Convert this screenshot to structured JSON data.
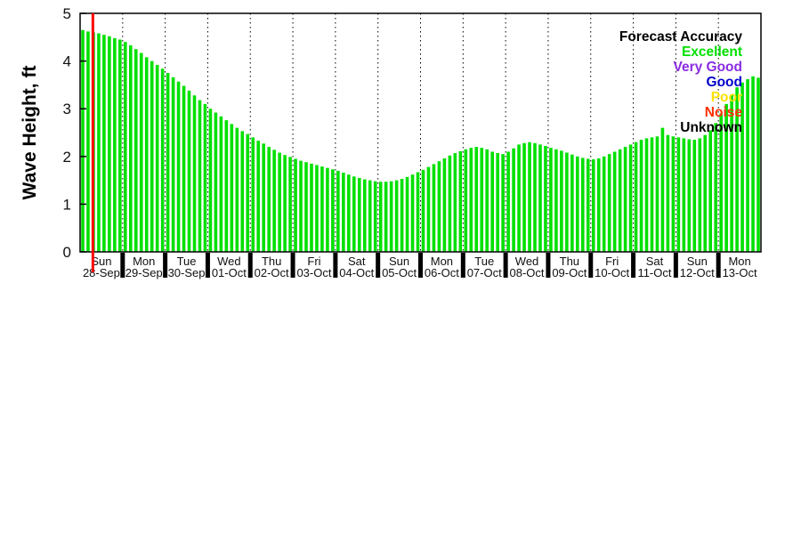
{
  "page": {
    "background": "#ffffff"
  },
  "chart_data": {
    "type": "bar",
    "title": "",
    "ylabel": "Wave Height, ft",
    "ylim": [
      0,
      5
    ],
    "yticks": [
      0,
      1,
      2,
      3,
      4,
      5
    ],
    "grid": {
      "vertical_dotted": true,
      "horizontal": false
    },
    "bar_color": "#00e000",
    "bars_per_day": 8,
    "days": [
      {
        "name": "Sun",
        "date": "28-Sep"
      },
      {
        "name": "Mon",
        "date": "29-Sep"
      },
      {
        "name": "Tue",
        "date": "30-Sep"
      },
      {
        "name": "Wed",
        "date": "01-Oct"
      },
      {
        "name": "Thu",
        "date": "02-Oct"
      },
      {
        "name": "Fri",
        "date": "03-Oct"
      },
      {
        "name": "Sat",
        "date": "04-Oct"
      },
      {
        "name": "Sun",
        "date": "05-Oct"
      },
      {
        "name": "Mon",
        "date": "06-Oct"
      },
      {
        "name": "Tue",
        "date": "07-Oct"
      },
      {
        "name": "Wed",
        "date": "08-Oct"
      },
      {
        "name": "Thu",
        "date": "09-Oct"
      },
      {
        "name": "Fri",
        "date": "10-Oct"
      },
      {
        "name": "Sat",
        "date": "11-Oct"
      },
      {
        "name": "Sun",
        "date": "12-Oct"
      },
      {
        "name": "Mon",
        "date": "13-Oct"
      }
    ],
    "values": [
      4.65,
      4.62,
      4.6,
      4.58,
      4.55,
      4.52,
      4.48,
      4.45,
      4.4,
      4.33,
      4.25,
      4.17,
      4.08,
      4.0,
      3.92,
      3.84,
      3.75,
      3.66,
      3.57,
      3.48,
      3.38,
      3.28,
      3.18,
      3.1,
      3.0,
      2.92,
      2.84,
      2.76,
      2.68,
      2.6,
      2.53,
      2.47,
      2.4,
      2.33,
      2.27,
      2.2,
      2.14,
      2.08,
      2.03,
      1.99,
      1.95,
      1.91,
      1.88,
      1.85,
      1.82,
      1.79,
      1.76,
      1.73,
      1.7,
      1.66,
      1.62,
      1.58,
      1.55,
      1.52,
      1.5,
      1.48,
      1.47,
      1.47,
      1.48,
      1.5,
      1.53,
      1.57,
      1.62,
      1.67,
      1.72,
      1.78,
      1.84,
      1.9,
      1.96,
      2.02,
      2.07,
      2.11,
      2.15,
      2.18,
      2.2,
      2.18,
      2.15,
      2.1,
      2.07,
      2.05,
      2.1,
      2.17,
      2.25,
      2.28,
      2.3,
      2.28,
      2.25,
      2.22,
      2.18,
      2.15,
      2.12,
      2.08,
      2.04,
      2.0,
      1.97,
      1.95,
      1.94,
      1.96,
      2.0,
      2.05,
      2.1,
      2.15,
      2.2,
      2.25,
      2.3,
      2.35,
      2.38,
      2.4,
      2.42,
      2.6,
      2.45,
      2.42,
      2.4,
      2.38,
      2.36,
      2.35,
      2.38,
      2.45,
      2.55,
      2.7,
      2.9,
      3.1,
      3.3,
      3.45,
      3.55,
      3.62,
      3.68,
      3.65
    ],
    "now_line": {
      "color": "#ff0000",
      "day_offset": 0.3
    },
    "legend": {
      "title": "Forecast Accuracy",
      "position": "top-right",
      "entries": [
        {
          "label": "Excellent",
          "color": "#00e000"
        },
        {
          "label": "Very Good",
          "color": "#8a2be2"
        },
        {
          "label": "Good",
          "color": "#0000cd"
        },
        {
          "label": "Poor",
          "color": "#ffe100"
        },
        {
          "label": "Noise",
          "color": "#ff3000"
        },
        {
          "label": "Unknown",
          "color": "#000000"
        }
      ]
    }
  }
}
